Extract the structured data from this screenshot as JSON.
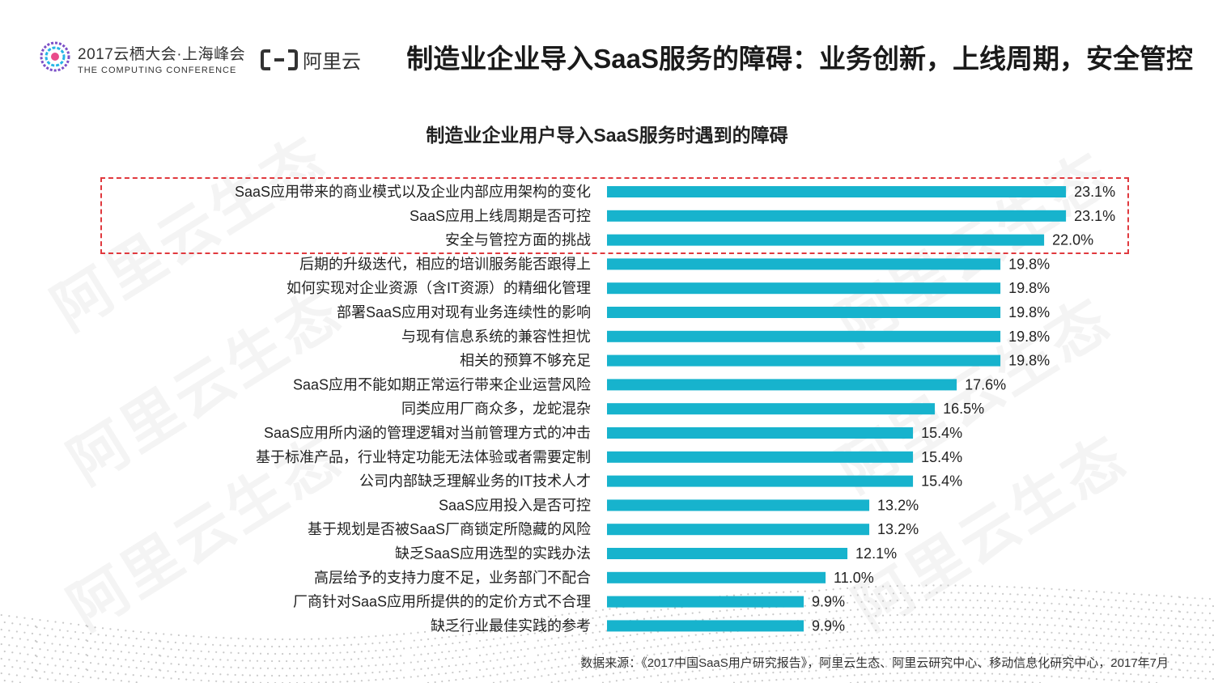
{
  "header": {
    "conference_cn": "2017云栖大会·上海峰会",
    "conference_en": "THE COMPUTING CONFERENCE",
    "brand_name": "阿里云",
    "page_title": "制造业企业导入SaaS服务的障碍：业务创新，上线周期，安全管控"
  },
  "watermark_text": "阿里云生态",
  "colors": {
    "bar": "#17b3cd",
    "highlight": "#e0393e",
    "text": "#222222"
  },
  "chart_data": {
    "type": "bar",
    "orientation": "horizontal",
    "title": "制造业企业用户导入SaaS服务时遇到的障碍",
    "unit": "%",
    "xlim": [
      0,
      30
    ],
    "highlighted_rows": [
      0,
      1,
      2
    ],
    "categories": [
      "SaaS应用带来的商业模式以及企业内部应用架构的变化",
      "SaaS应用上线周期是否可控",
      "安全与管控方面的挑战",
      "后期的升级迭代，相应的培训服务能否跟得上",
      "如何实现对企业资源（含IT资源）的精细化管理",
      "部署SaaS应用对现有业务连续性的影响",
      "与现有信息系统的兼容性担忧",
      "相关的预算不够充足",
      "SaaS应用不能如期正常运行带来企业运营风险",
      "同类应用厂商众多，龙蛇混杂",
      "SaaS应用所内涵的管理逻辑对当前管理方式的冲击",
      "基于标准产品，行业特定功能无法体验或者需要定制",
      "公司内部缺乏理解业务的IT技术人才",
      "SaaS应用投入是否可控",
      "基于规划是否被SaaS厂商锁定所隐藏的风险",
      "缺乏SaaS应用选型的实践办法",
      "高层给予的支持力度不足，业务部门不配合",
      "厂商针对SaaS应用所提供的的定价方式不合理",
      "缺乏行业最佳实践的参考"
    ],
    "values": [
      23.1,
      23.1,
      22.0,
      19.8,
      19.8,
      19.8,
      19.8,
      19.8,
      17.6,
      16.5,
      15.4,
      15.4,
      15.4,
      13.2,
      13.2,
      12.1,
      11.0,
      9.9,
      9.9
    ],
    "value_labels": [
      "23.1%",
      "23.1%",
      "22.0%",
      "19.8%",
      "19.8%",
      "19.8%",
      "19.8%",
      "19.8%",
      "17.6%",
      "16.5%",
      "15.4%",
      "15.4%",
      "15.4%",
      "13.2%",
      "13.2%",
      "12.1%",
      "11.0%",
      "9.9%",
      "9.9%"
    ]
  },
  "source": "数据来源：《2017中国SaaS用户研究报告》，阿里云生态、阿里云研究中心、移动信息化研究中心，2017年7月"
}
